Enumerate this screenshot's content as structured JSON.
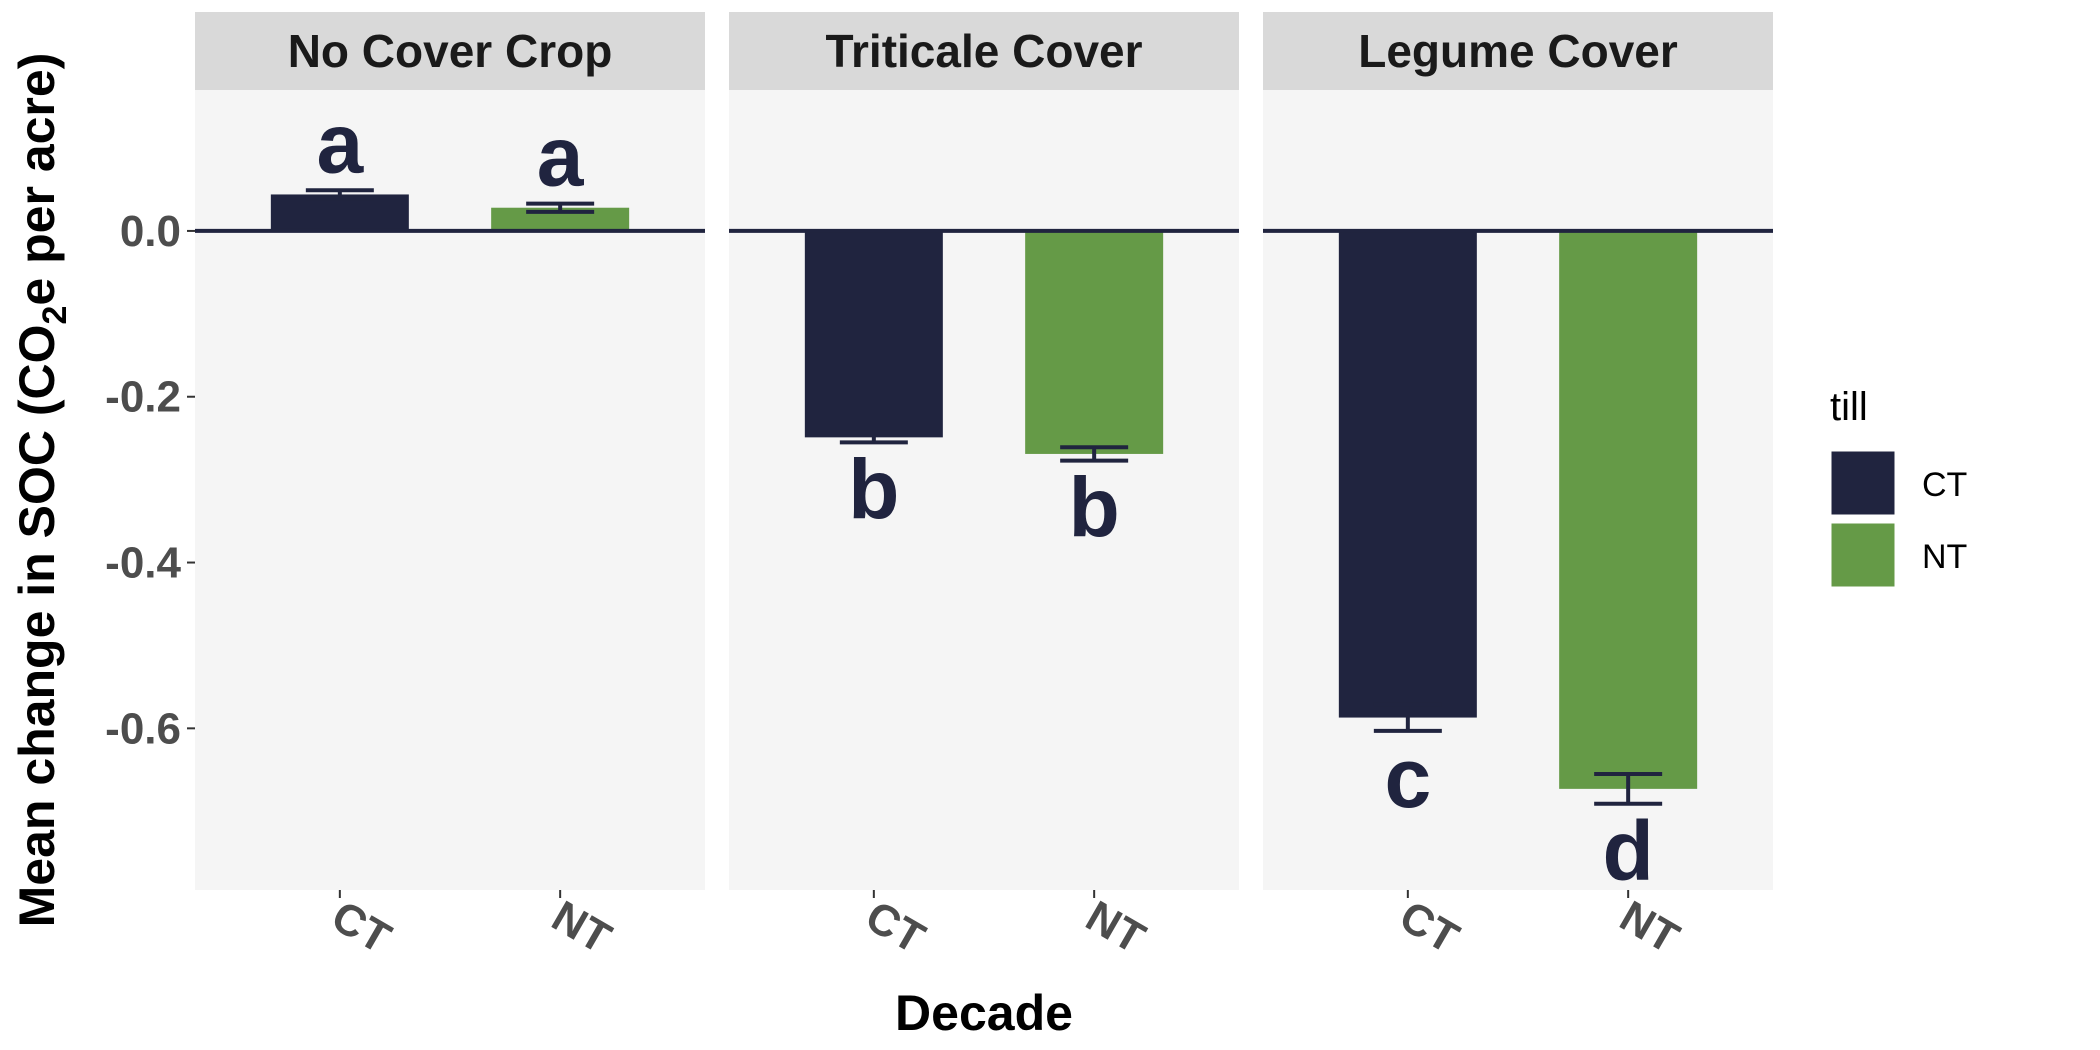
{
  "chart_data": {
    "type": "bar",
    "facets": [
      {
        "label": "No Cover Crop",
        "bars": [
          {
            "category": "CT",
            "till": "CT",
            "value": 0.044,
            "error": 0.005,
            "letter": "a"
          },
          {
            "category": "NT",
            "till": "NT",
            "value": 0.028,
            "error": 0.005,
            "letter": "a"
          }
        ]
      },
      {
        "label": "Triticale Cover",
        "bars": [
          {
            "category": "CT",
            "till": "CT",
            "value": -0.249,
            "error": 0.006,
            "letter": "b"
          },
          {
            "category": "NT",
            "till": "NT",
            "value": -0.269,
            "error": 0.008,
            "letter": "b"
          }
        ]
      },
      {
        "label": "Legume Cover",
        "bars": [
          {
            "category": "CT",
            "till": "CT",
            "value": -0.587,
            "error": 0.016,
            "letter": "c"
          },
          {
            "category": "NT",
            "till": "NT",
            "value": -0.673,
            "error": 0.018,
            "letter": "d"
          }
        ]
      }
    ],
    "ylabel_parts": [
      "Mean change in SOC (CO",
      "2",
      "e per acre)"
    ],
    "xlabel": "Decade",
    "yticks": [
      {
        "value": 0.0,
        "label": "0.0"
      },
      {
        "value": -0.2,
        "label": "-0.2"
      },
      {
        "value": -0.4,
        "label": "-0.4"
      },
      {
        "value": -0.6,
        "label": "-0.6"
      }
    ],
    "ylim": [
      -0.795,
      0.17
    ],
    "legend": {
      "title": "till",
      "position": "right",
      "entries": [
        {
          "key": "CT",
          "label": "CT",
          "color": "#20243f"
        },
        {
          "key": "NT",
          "label": "NT",
          "color": "#659a47"
        }
      ]
    },
    "colors": {
      "panel_bg": "#f5f5f5",
      "strip_bg": "#d9d9d9",
      "zero_line": "#20243f",
      "error_bar": "#20243f",
      "letters": "#20243f"
    },
    "grid": false
  }
}
